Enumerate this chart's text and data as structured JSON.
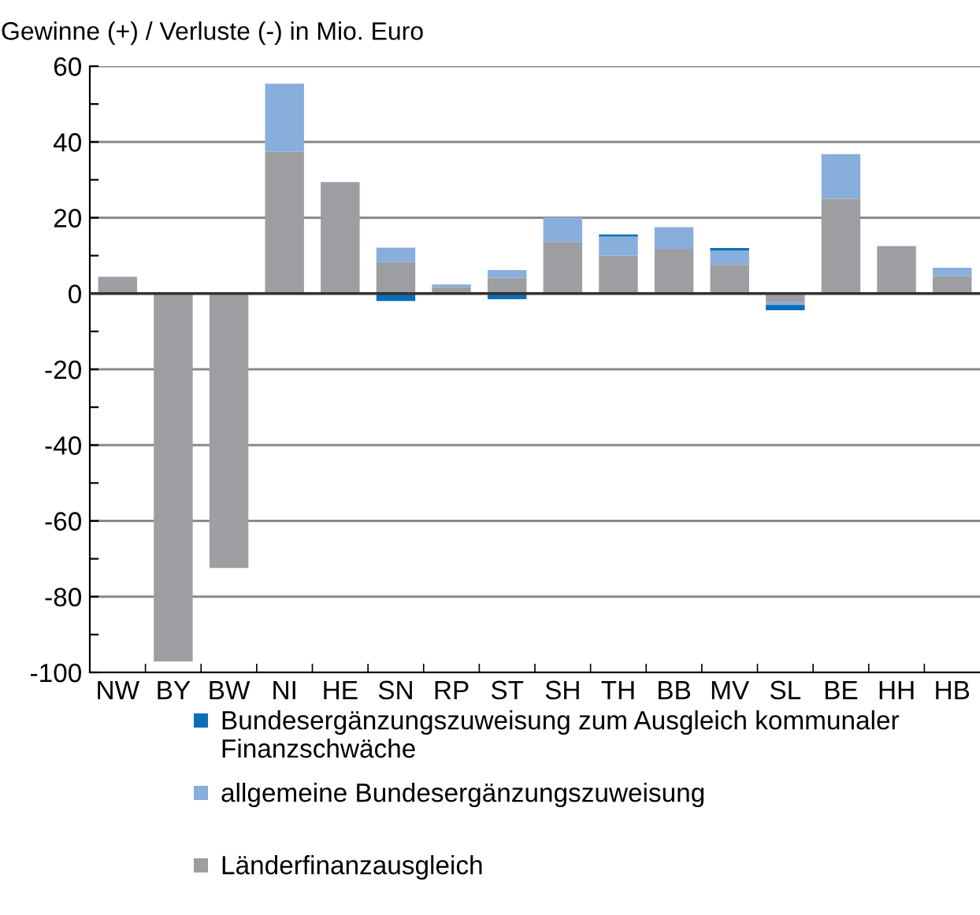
{
  "chart_data": {
    "type": "bar",
    "stacked": true,
    "ylabel": "Gewinne (+) / Verluste (-) in Mio. Euro",
    "categories": [
      "NW",
      "BY",
      "BW",
      "NI",
      "HE",
      "SN",
      "RP",
      "ST",
      "SH",
      "TH",
      "BB",
      "MV",
      "SL",
      "BE",
      "HH",
      "HB"
    ],
    "series": [
      {
        "name": "Länderfinanzausgleich",
        "color": "#9d9ea2",
        "values": [
          4.4,
          -97.1,
          -72.4,
          37.4,
          29.4,
          8.3,
          1.7,
          4.2,
          13.6,
          10,
          11.8,
          7.6,
          -2.3,
          25,
          12.5,
          4.6
        ]
      },
      {
        "name": "allgemeine Bundesergänzungszuweisung",
        "color": "#88aedc",
        "values": [
          null,
          null,
          null,
          18,
          null,
          3.8,
          0.7,
          2,
          6.5,
          5,
          5.7,
          3.8,
          -0.7,
          11.8,
          null,
          2.2
        ]
      },
      {
        "name": "Bundesergänzungszuweisung zum Ausgleich kommunaler Finanzschwäche",
        "color": "#0a6fb7",
        "values": [
          null,
          null,
          null,
          null,
          null,
          -2,
          null,
          -1.5,
          null,
          0.6,
          null,
          0.6,
          -1.4,
          null,
          null,
          null
        ]
      }
    ],
    "ylim": [
      -100,
      60
    ],
    "yticks": [
      -100,
      {
        "value": -90,
        "label": null
      },
      -80,
      {
        "value": -70,
        "label": null
      },
      -60,
      {
        "value": -50,
        "label": null
      },
      -40,
      {
        "value": -30,
        "label": null
      },
      -20,
      {
        "value": -10,
        "label": null
      },
      0,
      {
        "value": 10,
        "label": null
      },
      20,
      {
        "value": 30,
        "label": null
      },
      40,
      {
        "value": 50,
        "label": null
      },
      60
    ],
    "grid": "y",
    "legend": "bottom"
  }
}
